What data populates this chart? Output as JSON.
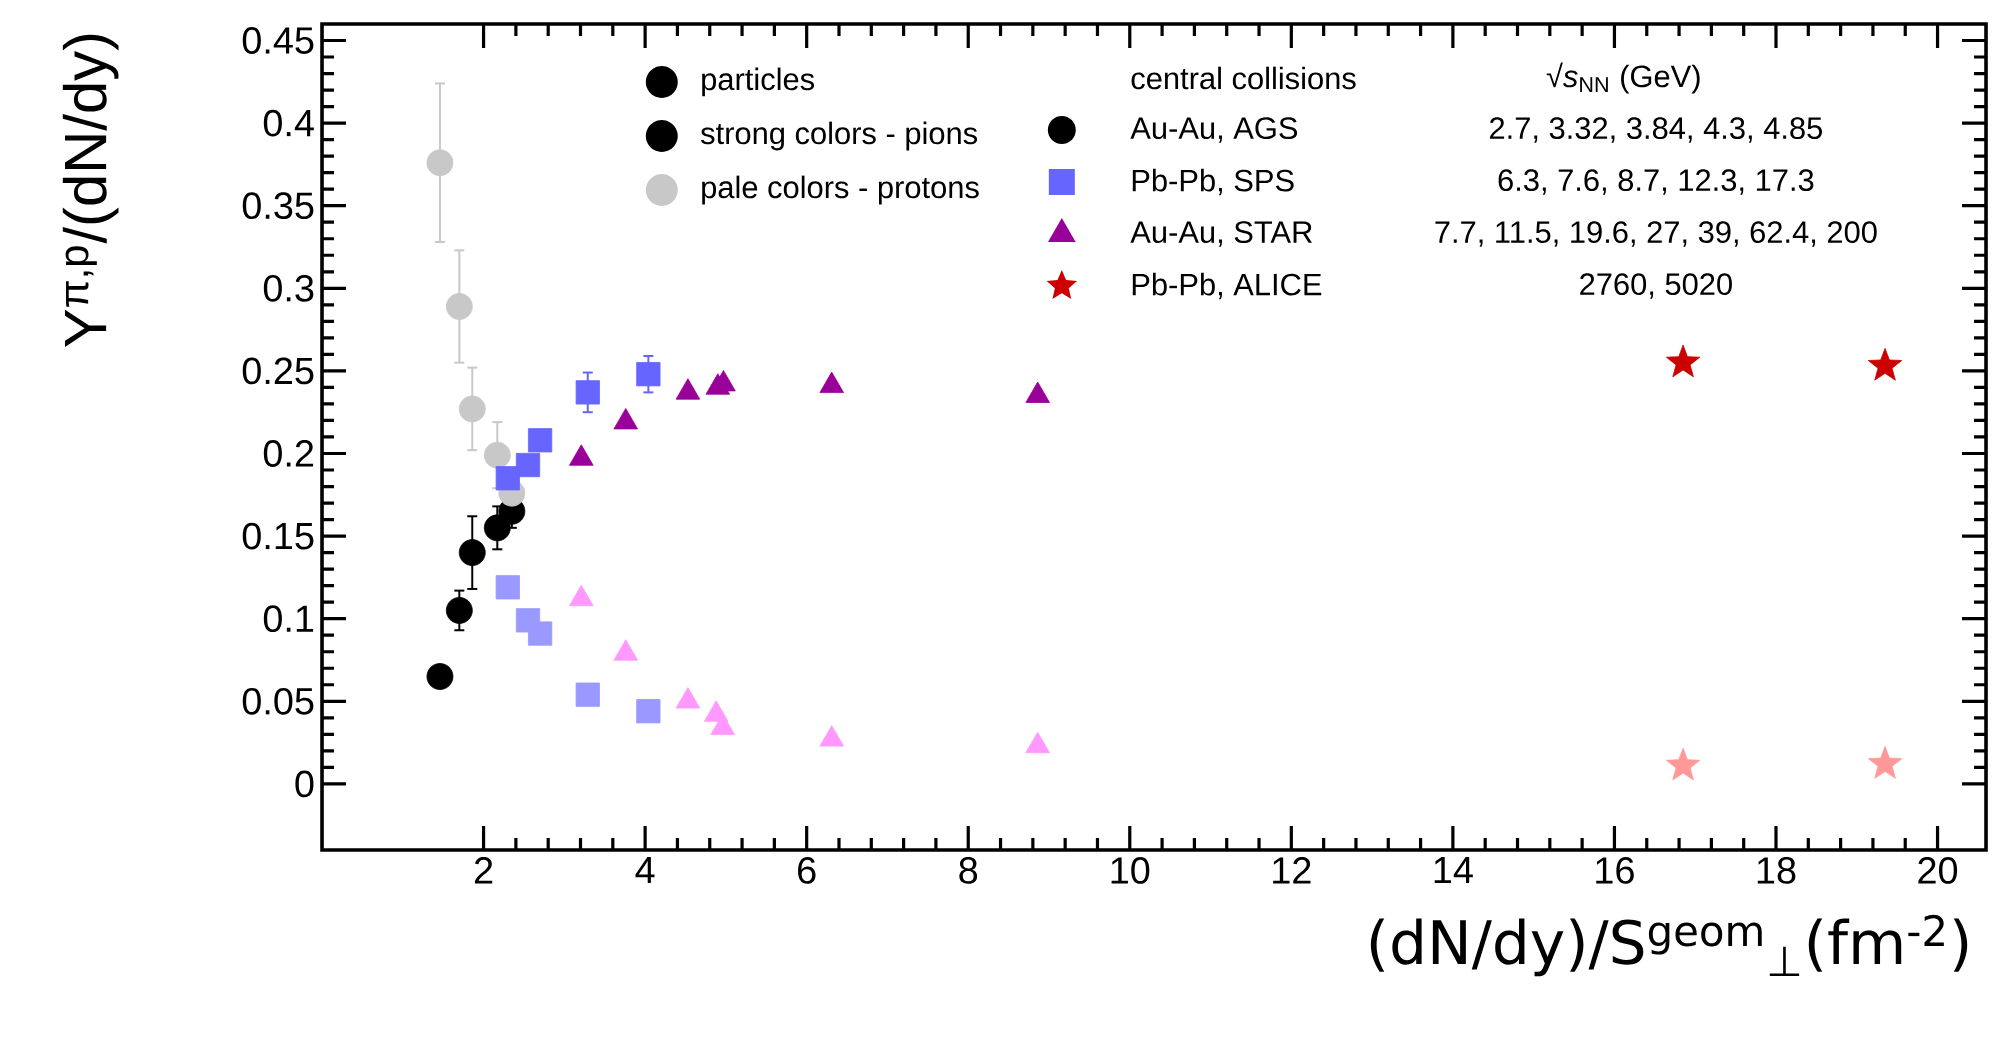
{
  "chart_data": {
    "type": "scatter",
    "xlabel": "(dN/dy)/S$^{geom}$$_{⊥}$(fm$^{-2}$)",
    "ylabel": "Y$^{π,p}$/(dN/dy)",
    "xlim": [
      0,
      20.6
    ],
    "ylim": [
      -0.04,
      0.46
    ],
    "xticks": [
      2,
      4,
      6,
      8,
      10,
      12,
      14,
      16,
      18,
      20
    ],
    "yticks": [
      0,
      0.05,
      0.1,
      0.15,
      0.2,
      0.25,
      0.3,
      0.35,
      0.4,
      0.45
    ],
    "grid": false,
    "legend": "top",
    "annotations": [
      "particles",
      "strong colors - pions",
      "pale colors - protons",
      "central collisions",
      "√*s*$_{NN}$ (GeV)",
      "2.7, 3.32, 3.84, 4.3, 4.85",
      "6.3, 7.6, 8.7, 12.3, 17.3",
      "7.7, 11.5, 19.6, 27, 39, 62.4,  200",
      "2760, 5020",
      "●",
      "●",
      "●"
    ],
    "series": [
      {
        "name": "Au-Au, AGS",
        "color": "#000000",
        "marker": "circle",
        "x": [
          1.46,
          1.7,
          1.86,
          2.17,
          2.35
        ],
        "values": [
          0.065,
          0.105,
          0.14,
          0.155,
          0.165
        ],
        "errors": [
          0.004,
          0.012,
          0.022,
          0.013,
          0.01
        ]
      },
      {
        "color": "#c8c8c8",
        "marker": "circle",
        "x": [
          1.46,
          1.7,
          1.86,
          2.17,
          2.35
        ],
        "values": [
          0.376,
          0.289,
          0.227,
          0.199,
          0.176
        ],
        "errors": [
          0.048,
          0.034,
          0.025,
          0.02,
          0.015
        ]
      },
      {
        "name": "Pb-Pb, SPS",
        "color": "#6666ff",
        "marker": "square",
        "x": [
          2.3,
          2.55,
          2.7,
          3.29,
          4.04
        ],
        "values": [
          0.185,
          0.193,
          0.208,
          0.237,
          0.248
        ],
        "errors": [
          0.005,
          0.005,
          0.006,
          0.012,
          0.011
        ]
      },
      {
        "color": "#9999ff",
        "marker": "square",
        "x": [
          2.3,
          2.55,
          2.7,
          3.29,
          4.04
        ],
        "values": [
          0.119,
          0.099,
          0.091,
          0.054,
          0.044
        ]
      },
      {
        "name": "Au-Au, STAR",
        "color": "#990099",
        "marker": "triangle",
        "x": [
          3.21,
          3.76,
          4.53,
          4.9,
          4.97,
          6.31,
          8.86
        ],
        "values": [
          0.197,
          0.219,
          0.237,
          0.24,
          0.242,
          0.241,
          0.235
        ]
      },
      {
        "color": "#ff99ff",
        "marker": "triangle",
        "x": [
          3.21,
          3.76,
          4.53,
          4.88,
          4.96,
          6.31,
          8.86
        ],
        "values": [
          0.112,
          0.079,
          0.05,
          0.042,
          0.034,
          0.027,
          0.023
        ]
      },
      {
        "name": "Pb-Pb, ALICE",
        "color": "#cc0000",
        "marker": "star",
        "x": [
          16.85,
          19.35
        ],
        "values": [
          0.255,
          0.253
        ]
      },
      {
        "color": "#ff9999",
        "marker": "star",
        "x": [
          16.85,
          19.35
        ],
        "values": [
          0.011,
          0.012
        ]
      }
    ]
  }
}
